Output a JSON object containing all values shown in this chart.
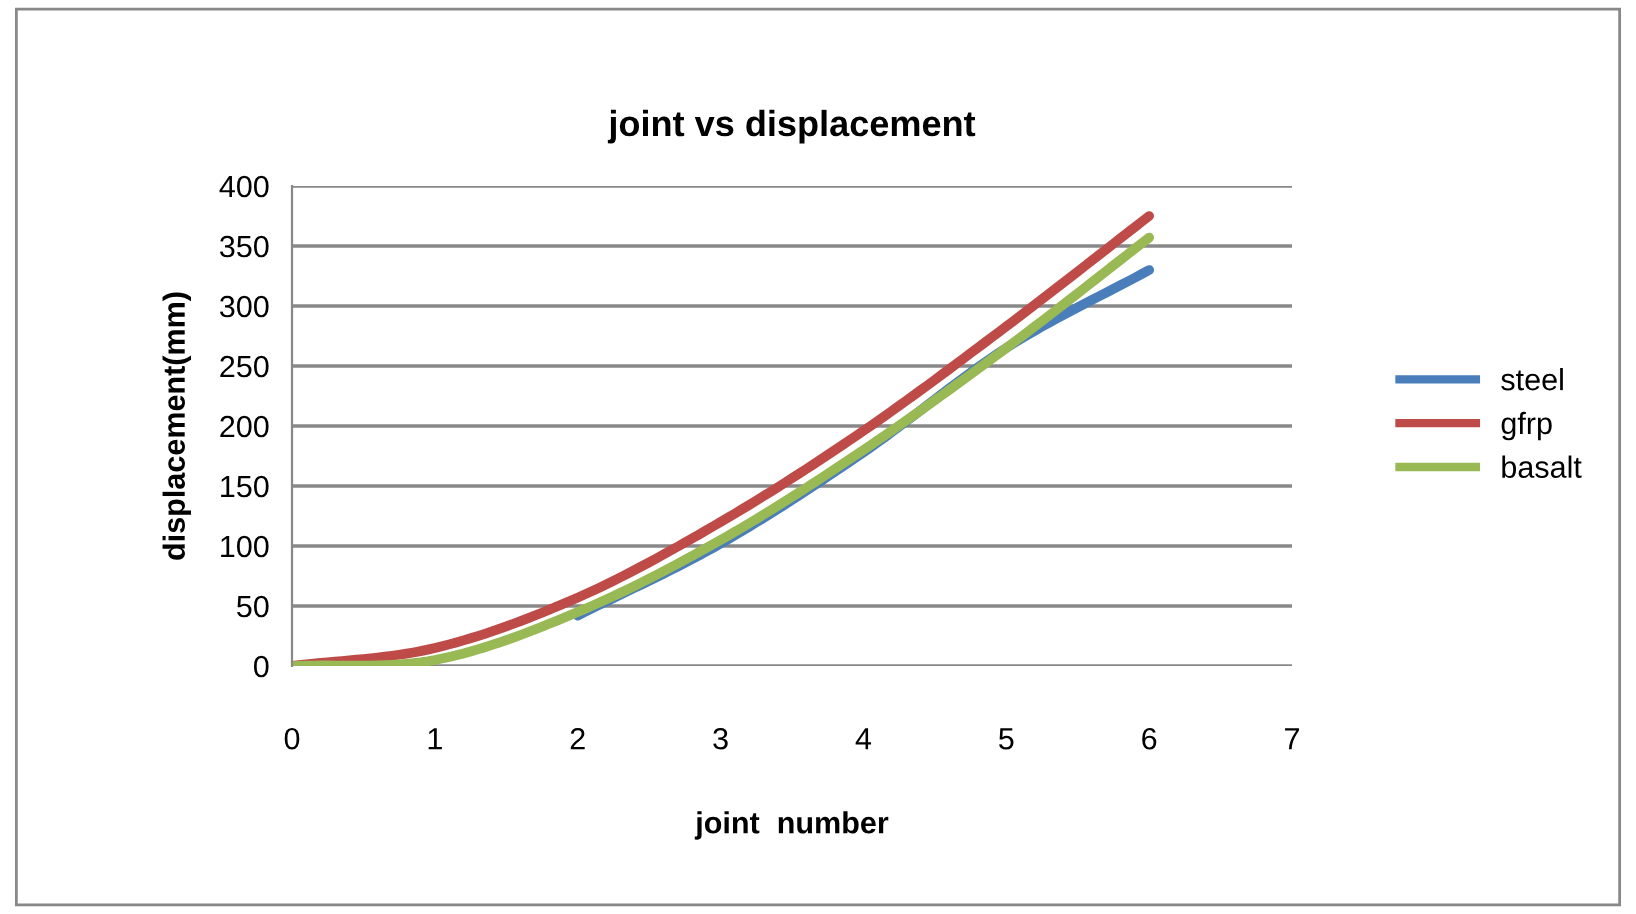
{
  "chart_data": {
    "type": "line",
    "title": "joint vs displacement",
    "xlabel": "joint  number",
    "ylabel": "displacement(mm)",
    "x": [
      0,
      1,
      2,
      3,
      4,
      5,
      6
    ],
    "series": [
      {
        "name": "steel",
        "color": "#4a7ebb",
        "values": [
          null,
          null,
          42,
          102,
          178,
          265,
          330
        ]
      },
      {
        "name": "gfrp",
        "color": "#be4b48",
        "values": [
          0,
          15,
          57,
          120,
          196,
          283,
          375
        ]
      },
      {
        "name": "basalt",
        "color": "#98b954",
        "values": [
          0,
          5,
          45,
          105,
          180,
          265,
          357
        ]
      }
    ],
    "xlim": [
      0,
      7
    ],
    "xticks": [
      0,
      1,
      2,
      3,
      4,
      5,
      6,
      7
    ],
    "ylim": [
      0,
      400
    ],
    "yticks": [
      0,
      50,
      100,
      150,
      200,
      250,
      300,
      350,
      400
    ],
    "grid": "y",
    "legend": "right",
    "marker": "none",
    "line_style": "solid"
  }
}
